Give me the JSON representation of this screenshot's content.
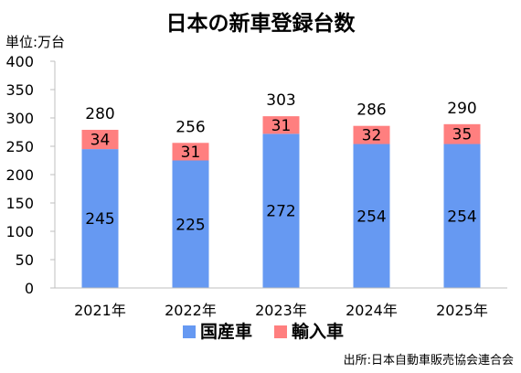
{
  "chart_data": {
    "type": "bar",
    "stacked": true,
    "title": "日本の新車登録台数",
    "unit_label": "単位:万台",
    "categories": [
      "2021年",
      "2022年",
      "2023年",
      "2024年",
      "2025年"
    ],
    "series": [
      {
        "name": "国産車",
        "values": [
          245,
          225,
          272,
          254,
          254
        ],
        "color": "#6699f2"
      },
      {
        "name": "輸入車",
        "values": [
          34,
          31,
          31,
          32,
          35
        ],
        "color": "#ff7f7f"
      }
    ],
    "totals": [
      280,
      256,
      303,
      286,
      290
    ],
    "ylim": [
      0,
      400
    ],
    "yticks": [
      0,
      50,
      100,
      150,
      200,
      250,
      300,
      350,
      400
    ],
    "grid": false,
    "legend_position": "bottom",
    "source": "出所:日本自動車販売協会連合会"
  }
}
